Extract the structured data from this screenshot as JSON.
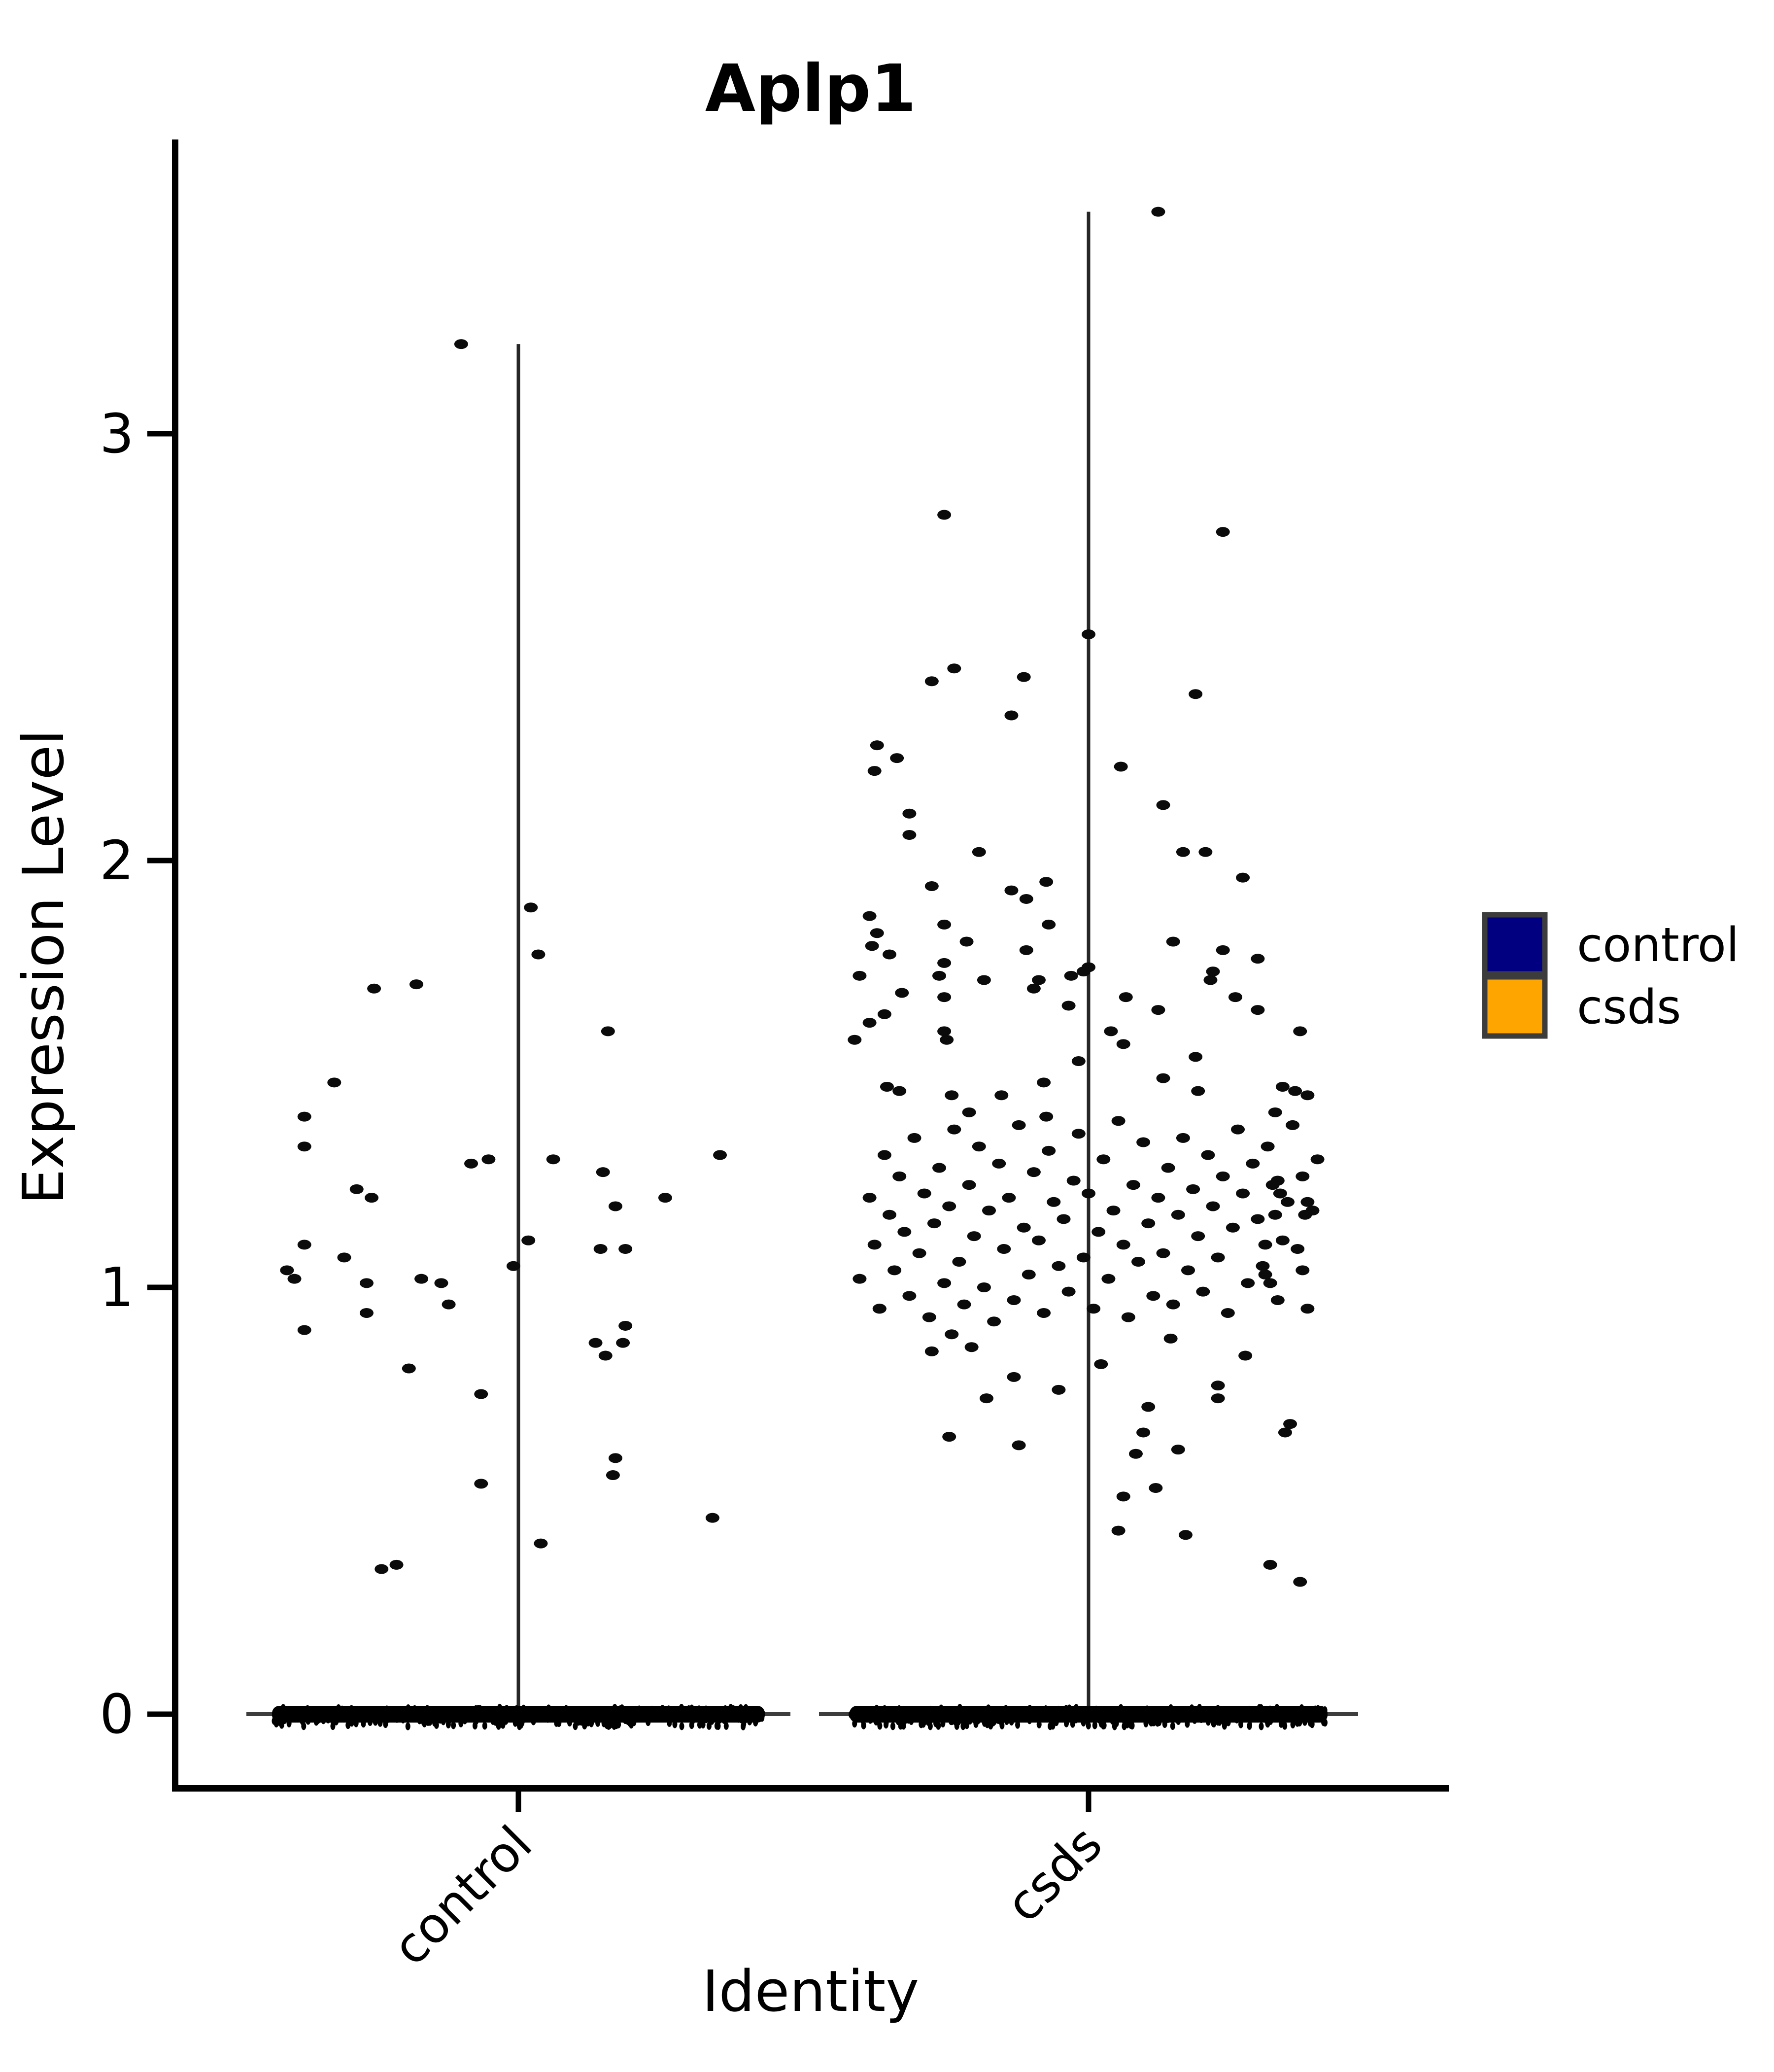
{
  "title": "Aplp1",
  "axes": {
    "y_label": "Expression Level",
    "x_label": "Identity",
    "y_ticks": [
      0,
      1,
      2,
      3
    ],
    "x_tick_labels": [
      "control",
      "csds"
    ]
  },
  "legend": {
    "items": [
      {
        "label": "control",
        "color": "#000080"
      },
      {
        "label": "csds",
        "color": "#FFA500"
      }
    ]
  },
  "chart_data": {
    "type": "scatter",
    "subtype": "violin-jitter",
    "title": "Aplp1",
    "xlabel": "Identity",
    "ylabel": "Expression Level",
    "x_categories": [
      "control",
      "csds"
    ],
    "y_ticks": [
      0,
      1,
      2,
      3
    ],
    "ylim": [
      -0.18,
      3.72
    ],
    "grid": false,
    "legend_position": "center-right",
    "point_color": "#000000",
    "legend": [
      {
        "label": "control",
        "color": "#000080"
      },
      {
        "label": "csds",
        "color": "#FFA500"
      }
    ],
    "groups": [
      {
        "name": "control",
        "color": "#000080",
        "violin_line_max": 3.21,
        "zero_value": 0,
        "zero_count": 300,
        "points": [
          [
            -0.23,
            3.21
          ],
          [
            0.05,
            1.89
          ],
          [
            0.08,
            1.78
          ],
          [
            -0.58,
            1.7
          ],
          [
            -0.41,
            1.71
          ],
          [
            0.36,
            1.6
          ],
          [
            -0.74,
            1.48
          ],
          [
            -0.86,
            1.4
          ],
          [
            -0.86,
            1.33
          ],
          [
            -0.19,
            1.29
          ],
          [
            -0.12,
            1.3
          ],
          [
            0.14,
            1.3
          ],
          [
            0.34,
            1.27
          ],
          [
            -0.65,
            1.23
          ],
          [
            -0.59,
            1.21
          ],
          [
            0.81,
            1.31
          ],
          [
            0.59,
            1.21
          ],
          [
            0.39,
            1.19
          ],
          [
            0.04,
            1.11
          ],
          [
            -0.02,
            1.05
          ],
          [
            -0.86,
            1.1
          ],
          [
            -0.7,
            1.07
          ],
          [
            -0.93,
            1.04
          ],
          [
            -0.9,
            1.02
          ],
          [
            -0.61,
            1.01
          ],
          [
            -0.39,
            1.02
          ],
          [
            -0.31,
            1.01
          ],
          [
            0.33,
            1.09
          ],
          [
            0.43,
            1.09
          ],
          [
            -0.28,
            0.96
          ],
          [
            -0.61,
            0.94
          ],
          [
            -0.86,
            0.9
          ],
          [
            0.43,
            0.91
          ],
          [
            0.31,
            0.87
          ],
          [
            0.35,
            0.84
          ],
          [
            -0.44,
            0.81
          ],
          [
            -0.15,
            0.75
          ],
          [
            0.42,
            0.87
          ],
          [
            0.39,
            0.6
          ],
          [
            -0.15,
            0.54
          ],
          [
            0.38,
            0.56
          ],
          [
            0.78,
            0.46
          ],
          [
            0.09,
            0.4
          ],
          [
            -0.55,
            0.34
          ],
          [
            -0.49,
            0.35
          ]
        ]
      },
      {
        "name": "csds",
        "color": "#FFA500",
        "violin_line_max": 3.52,
        "zero_value": 0,
        "zero_count": 320,
        "points": [
          [
            0.28,
            3.52
          ],
          [
            -0.58,
            2.81
          ],
          [
            0.54,
            2.77
          ],
          [
            0.0,
            2.53
          ],
          [
            -0.54,
            2.45
          ],
          [
            -0.63,
            2.42
          ],
          [
            -0.26,
            2.43
          ],
          [
            -0.31,
            2.34
          ],
          [
            0.43,
            2.39
          ],
          [
            -0.85,
            2.27
          ],
          [
            -0.77,
            2.24
          ],
          [
            -0.86,
            2.21
          ],
          [
            0.13,
            2.22
          ],
          [
            0.3,
            2.13
          ],
          [
            -0.72,
            2.11
          ],
          [
            -0.72,
            2.06
          ],
          [
            -0.44,
            2.02
          ],
          [
            0.38,
            2.02
          ],
          [
            0.47,
            2.02
          ],
          [
            -0.63,
            1.94
          ],
          [
            0.62,
            1.96
          ],
          [
            -0.31,
            1.93
          ],
          [
            -0.17,
            1.95
          ],
          [
            -0.25,
            1.91
          ],
          [
            -0.88,
            1.87
          ],
          [
            -0.58,
            1.85
          ],
          [
            -0.16,
            1.85
          ],
          [
            -0.85,
            1.83
          ],
          [
            -0.87,
            1.8
          ],
          [
            -0.8,
            1.78
          ],
          [
            -0.49,
            1.81
          ],
          [
            -0.25,
            1.79
          ],
          [
            0.34,
            1.81
          ],
          [
            0.54,
            1.79
          ],
          [
            0.68,
            1.77
          ],
          [
            -0.58,
            1.76
          ],
          [
            -0.6,
            1.73
          ],
          [
            -0.92,
            1.73
          ],
          [
            -0.75,
            1.69
          ],
          [
            -0.58,
            1.68
          ],
          [
            -0.42,
            1.72
          ],
          [
            -0.07,
            1.73
          ],
          [
            0.0,
            1.75
          ],
          [
            -0.2,
            1.72
          ],
          [
            -0.22,
            1.7
          ],
          [
            -0.08,
            1.66
          ],
          [
            -0.02,
            1.74
          ],
          [
            0.15,
            1.68
          ],
          [
            0.28,
            1.65
          ],
          [
            0.49,
            1.72
          ],
          [
            0.5,
            1.74
          ],
          [
            0.59,
            1.68
          ],
          [
            0.68,
            1.65
          ],
          [
            -0.82,
            1.64
          ],
          [
            -0.88,
            1.62
          ],
          [
            -0.94,
            1.58
          ],
          [
            -0.81,
            1.47
          ],
          [
            -0.76,
            1.46
          ],
          [
            -0.58,
            1.6
          ],
          [
            -0.57,
            1.58
          ],
          [
            -0.55,
            1.45
          ],
          [
            -0.48,
            1.41
          ],
          [
            -0.35,
            1.45
          ],
          [
            -0.18,
            1.48
          ],
          [
            -0.17,
            1.4
          ],
          [
            -0.04,
            1.53
          ],
          [
            0.14,
            1.57
          ],
          [
            0.09,
            1.6
          ],
          [
            0.3,
            1.49
          ],
          [
            0.44,
            1.46
          ],
          [
            0.43,
            1.54
          ],
          [
            0.85,
            1.6
          ],
          [
            0.78,
            1.47
          ],
          [
            0.83,
            1.46
          ],
          [
            0.88,
            1.45
          ],
          [
            0.75,
            1.41
          ],
          [
            0.76,
            1.25
          ],
          [
            0.77,
            1.22
          ],
          [
            0.75,
            1.17
          ],
          [
            0.71,
            1.1
          ],
          [
            0.88,
            1.2
          ],
          [
            0.87,
            1.17
          ],
          [
            0.71,
            1.03
          ],
          [
            0.73,
            1.01
          ],
          [
            0.86,
            1.04
          ],
          [
            0.79,
            0.66
          ],
          [
            -0.63,
            0.85
          ],
          [
            -0.56,
            0.65
          ],
          [
            -0.55,
            0.89
          ],
          [
            0.19,
            0.61
          ],
          [
            0.14,
            0.51
          ],
          [
            0.27,
            0.53
          ],
          [
            0.12,
            0.43
          ],
          [
            0.39,
            0.42
          ],
          [
            0.73,
            0.35
          ],
          [
            0.85,
            0.31
          ],
          [
            -0.41,
            0.74
          ],
          [
            -0.28,
            0.63
          ],
          [
            0.24,
            0.72
          ],
          [
            0.22,
            0.66
          ],
          [
            0.36,
            0.62
          ],
          [
            0.52,
            0.74
          ],
          [
            -0.84,
            0.95
          ],
          [
            0.81,
            0.68
          ],
          [
            -0.12,
            0.76
          ],
          [
            -0.92,
            1.02
          ],
          [
            -0.88,
            1.21
          ],
          [
            -0.86,
            1.1
          ],
          [
            -0.84,
            0.95
          ],
          [
            -0.82,
            1.31
          ],
          [
            -0.8,
            1.17
          ],
          [
            -0.78,
            1.04
          ],
          [
            -0.76,
            1.26
          ],
          [
            -0.74,
            1.13
          ],
          [
            -0.72,
            0.98
          ],
          [
            -0.7,
            1.35
          ],
          [
            -0.68,
            1.08
          ],
          [
            -0.66,
            1.22
          ],
          [
            -0.64,
            0.93
          ],
          [
            -0.62,
            1.15
          ],
          [
            -0.6,
            1.28
          ],
          [
            -0.58,
            1.01
          ],
          [
            -0.56,
            1.19
          ],
          [
            -0.54,
            1.37
          ],
          [
            -0.52,
            1.06
          ],
          [
            -0.5,
            0.96
          ],
          [
            -0.48,
            1.24
          ],
          [
            -0.46,
            1.12
          ],
          [
            -0.44,
            1.33
          ],
          [
            -0.42,
            1.0
          ],
          [
            -0.4,
            1.18
          ],
          [
            -0.38,
            0.92
          ],
          [
            -0.36,
            1.29
          ],
          [
            -0.34,
            1.09
          ],
          [
            -0.32,
            1.21
          ],
          [
            -0.3,
            0.97
          ],
          [
            -0.28,
            1.38
          ],
          [
            -0.26,
            1.14
          ],
          [
            -0.24,
            1.03
          ],
          [
            -0.22,
            1.27
          ],
          [
            -0.2,
            1.11
          ],
          [
            -0.18,
            0.94
          ],
          [
            -0.16,
            1.32
          ],
          [
            -0.14,
            1.2
          ],
          [
            -0.12,
            1.05
          ],
          [
            -0.1,
            1.16
          ],
          [
            -0.08,
            0.99
          ],
          [
            -0.06,
            1.25
          ],
          [
            -0.04,
            1.36
          ],
          [
            -0.02,
            1.07
          ],
          [
            0.0,
            1.22
          ],
          [
            0.02,
            0.95
          ],
          [
            0.04,
            1.13
          ],
          [
            0.06,
            1.3
          ],
          [
            0.08,
            1.02
          ],
          [
            0.1,
            1.18
          ],
          [
            0.12,
            1.39
          ],
          [
            0.14,
            1.1
          ],
          [
            0.16,
            0.93
          ],
          [
            0.18,
            1.24
          ],
          [
            0.2,
            1.06
          ],
          [
            0.22,
            1.34
          ],
          [
            0.24,
            1.15
          ],
          [
            0.26,
            0.98
          ],
          [
            0.28,
            1.21
          ],
          [
            0.3,
            1.08
          ],
          [
            0.32,
            1.28
          ],
          [
            0.34,
            0.96
          ],
          [
            0.36,
            1.17
          ],
          [
            0.38,
            1.35
          ],
          [
            0.4,
            1.04
          ],
          [
            0.42,
            1.23
          ],
          [
            0.44,
            1.12
          ],
          [
            0.46,
            0.99
          ],
          [
            0.48,
            1.31
          ],
          [
            0.5,
            1.19
          ],
          [
            0.52,
            1.07
          ],
          [
            0.54,
            1.26
          ],
          [
            0.56,
            0.94
          ],
          [
            0.58,
            1.14
          ],
          [
            0.6,
            1.37
          ],
          [
            0.62,
            1.22
          ],
          [
            0.64,
            1.01
          ],
          [
            0.66,
            1.29
          ],
          [
            0.68,
            1.16
          ],
          [
            0.7,
            1.05
          ],
          [
            0.72,
            1.33
          ],
          [
            0.74,
            1.24
          ],
          [
            0.76,
            0.97
          ],
          [
            0.78,
            1.11
          ],
          [
            0.8,
            1.2
          ],
          [
            0.82,
            1.38
          ],
          [
            0.84,
            1.09
          ],
          [
            0.86,
            1.26
          ],
          [
            0.88,
            0.95
          ],
          [
            0.9,
            1.18
          ],
          [
            0.92,
            1.3
          ],
          [
            -0.47,
            0.86
          ],
          [
            -0.3,
            0.79
          ],
          [
            0.05,
            0.82
          ],
          [
            0.33,
            0.88
          ],
          [
            0.52,
            0.77
          ],
          [
            0.63,
            0.84
          ]
        ]
      }
    ]
  }
}
